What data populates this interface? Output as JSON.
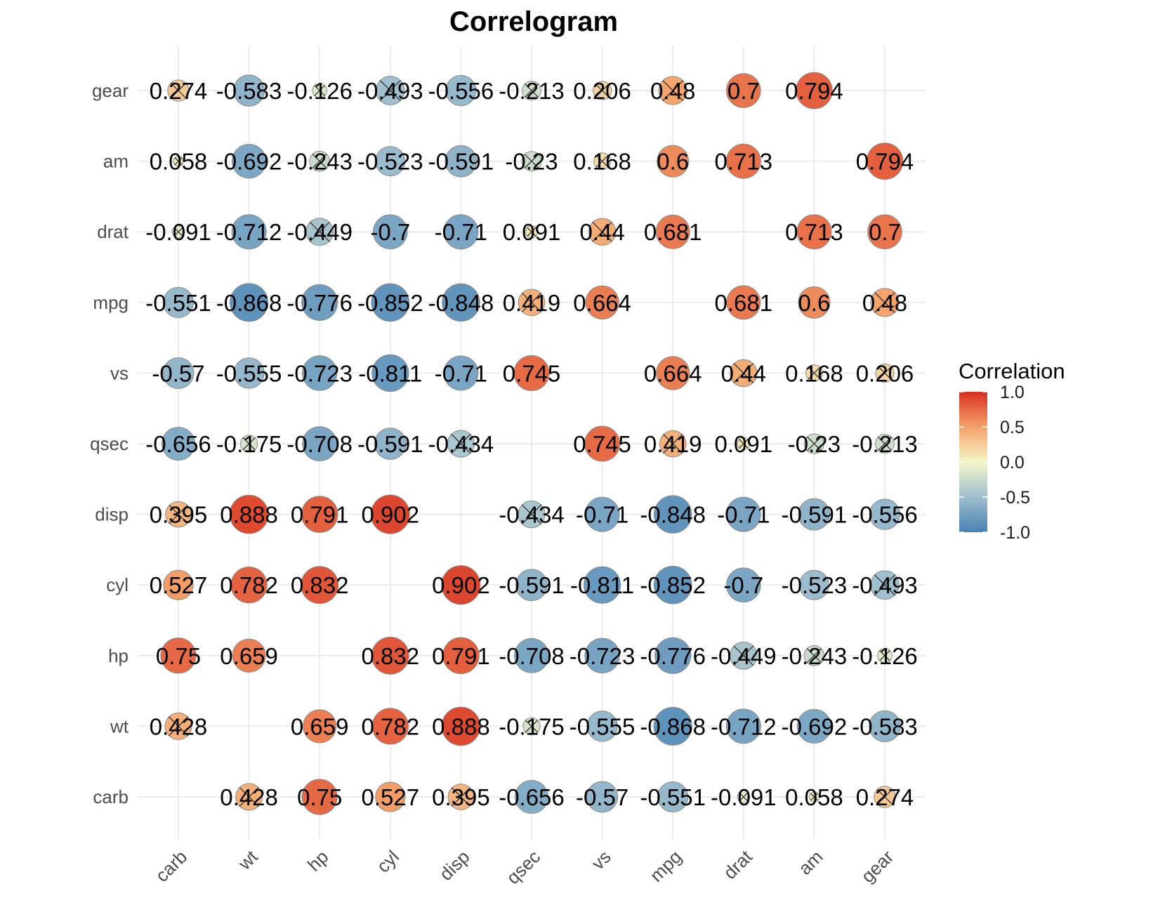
{
  "chart_data": {
    "type": "heatmap",
    "subtype": "correlogram-circle",
    "title": "Correlogram",
    "xlabel": "",
    "ylabel": "",
    "x_categories": [
      "carb",
      "wt",
      "hp",
      "cyl",
      "disp",
      "qsec",
      "vs",
      "mpg",
      "drat",
      "am",
      "gear"
    ],
    "y_categories_top_to_bottom": [
      "gear",
      "am",
      "drat",
      "mpg",
      "vs",
      "qsec",
      "disp",
      "cyl",
      "hp",
      "wt",
      "carb"
    ],
    "matrix_rows_top_to_bottom": [
      [
        0.274,
        -0.583,
        -0.126,
        -0.493,
        -0.556,
        -0.213,
        0.206,
        0.48,
        0.7,
        0.794,
        null
      ],
      [
        0.058,
        -0.692,
        -0.243,
        -0.523,
        -0.591,
        -0.23,
        0.168,
        0.6,
        0.713,
        null,
        0.794
      ],
      [
        -0.091,
        -0.712,
        -0.449,
        -0.7,
        -0.71,
        0.091,
        0.44,
        0.681,
        null,
        0.713,
        0.7
      ],
      [
        -0.551,
        -0.868,
        -0.776,
        -0.852,
        -0.848,
        0.419,
        0.664,
        null,
        0.681,
        0.6,
        0.48
      ],
      [
        -0.57,
        -0.555,
        -0.723,
        -0.811,
        -0.71,
        0.745,
        null,
        0.664,
        0.44,
        0.168,
        0.206
      ],
      [
        -0.656,
        -0.175,
        -0.708,
        -0.591,
        -0.434,
        null,
        0.745,
        0.419,
        0.091,
        -0.23,
        -0.213
      ],
      [
        0.395,
        0.888,
        0.791,
        0.902,
        null,
        -0.434,
        -0.71,
        -0.848,
        -0.71,
        -0.591,
        -0.556
      ],
      [
        0.527,
        0.782,
        0.832,
        null,
        0.902,
        -0.591,
        -0.811,
        -0.852,
        -0.7,
        -0.523,
        -0.493
      ],
      [
        0.75,
        0.659,
        null,
        0.832,
        0.791,
        -0.708,
        -0.723,
        -0.776,
        -0.449,
        -0.243,
        -0.126
      ],
      [
        0.428,
        null,
        0.659,
        0.782,
        0.888,
        -0.175,
        -0.555,
        -0.868,
        -0.712,
        -0.692,
        -0.583
      ],
      [
        null,
        0.428,
        0.75,
        0.527,
        0.395,
        -0.656,
        -0.57,
        -0.551,
        -0.091,
        0.058,
        0.274
      ]
    ],
    "insignificant_marker": "cross",
    "insignificant_threshold_abs_r": 0.5,
    "size_encodes": "absolute correlation",
    "color_scale": {
      "low": -1.0,
      "high": 1.0,
      "stops": [
        {
          "value": -1.0,
          "color": "#4682b4"
        },
        {
          "value": -0.5,
          "color": "#9fbfcf"
        },
        {
          "value": 0.0,
          "color": "#f3f6c8"
        },
        {
          "value": 0.5,
          "color": "#f4a26a"
        },
        {
          "value": 1.0,
          "color": "#d7301f"
        }
      ]
    },
    "legend": {
      "title": "Correlation",
      "position": "right",
      "ticks": [
        "1.0",
        "0.5",
        "0.0",
        "-0.5",
        "-1.0"
      ]
    },
    "grid": true
  }
}
